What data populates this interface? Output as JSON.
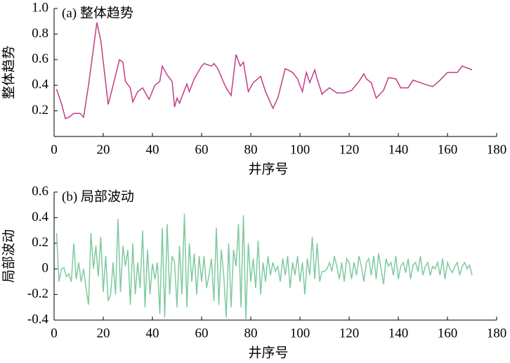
{
  "chart_data": [
    {
      "type": "line",
      "title": "(a) 整体趋势",
      "xlabel": "井序号",
      "ylabel": "整体趋势",
      "color": "#c43c86",
      "x": [
        1,
        3.1,
        4.6,
        6,
        8,
        10.6,
        12,
        14,
        17.4,
        19,
        22,
        24,
        26.6,
        28,
        29,
        31,
        32,
        34,
        36,
        38.6,
        41,
        43,
        44,
        46,
        48,
        49,
        50,
        51,
        54,
        55,
        57,
        60,
        61,
        64,
        65,
        66.6,
        69,
        70,
        72,
        74,
        75.7,
        77,
        79,
        81,
        84,
        86,
        89,
        91,
        94,
        97,
        99,
        101,
        102.6,
        104,
        106,
        107,
        109,
        110,
        112,
        115,
        118,
        121,
        124,
        126,
        127,
        129,
        131,
        134,
        136,
        139,
        141,
        144,
        146,
        149,
        152,
        154,
        157,
        160,
        164,
        166,
        170
      ],
      "values": [
        0.37,
        0.25,
        0.14,
        0.15,
        0.18,
        0.18,
        0.15,
        0.4,
        0.89,
        0.75,
        0.25,
        0.4,
        0.6,
        0.58,
        0.43,
        0.38,
        0.27,
        0.35,
        0.38,
        0.29,
        0.4,
        0.43,
        0.55,
        0.48,
        0.43,
        0.23,
        0.3,
        0.26,
        0.41,
        0.35,
        0.45,
        0.55,
        0.57,
        0.55,
        0.57,
        0.53,
        0.42,
        0.38,
        0.32,
        0.64,
        0.55,
        0.58,
        0.35,
        0.42,
        0.47,
        0.35,
        0.22,
        0.3,
        0.53,
        0.5,
        0.45,
        0.35,
        0.5,
        0.42,
        0.52,
        0.45,
        0.33,
        0.35,
        0.38,
        0.34,
        0.34,
        0.36,
        0.43,
        0.49,
        0.45,
        0.42,
        0.3,
        0.36,
        0.46,
        0.45,
        0.38,
        0.38,
        0.44,
        0.42,
        0.4,
        0.39,
        0.44,
        0.5,
        0.5,
        0.55,
        0.52
      ],
      "xlim": [
        0,
        180
      ],
      "xticks": [
        0,
        20,
        40,
        60,
        80,
        100,
        120,
        140,
        160,
        180
      ],
      "ylim": [
        0,
        1
      ],
      "yticks": [
        0.2,
        0.4,
        0.6,
        0.8,
        {
          "value": 1,
          "label": "1.0"
        }
      ]
    },
    {
      "type": "line",
      "title": "(b) 局部波动",
      "xlabel": "井序号",
      "ylabel": "局部波动",
      "color": "#7fcaa0",
      "x": [
        1,
        2,
        3,
        4,
        5,
        6,
        7,
        8,
        9,
        10,
        11,
        12,
        13,
        14,
        15,
        16,
        17,
        18,
        19,
        20,
        21,
        22,
        23,
        24,
        25,
        26,
        27,
        28,
        29,
        30,
        31,
        32,
        33,
        34,
        35,
        36,
        37,
        38,
        39,
        40,
        41,
        42,
        43,
        44,
        45,
        46,
        47,
        48,
        49,
        50,
        51,
        52,
        53,
        54,
        55,
        56,
        57,
        58,
        59,
        60,
        61,
        62,
        63,
        64,
        65,
        66,
        67,
        68,
        69,
        70,
        71,
        72,
        73,
        74,
        75,
        76,
        77,
        78,
        79,
        80,
        81,
        82,
        83,
        84,
        85,
        86,
        87,
        88,
        89,
        90,
        91,
        92,
        93,
        94,
        95,
        96,
        97,
        98,
        99,
        100,
        101,
        102,
        103,
        104,
        105,
        106,
        107,
        108,
        109,
        110,
        111,
        112,
        113,
        114,
        115,
        116,
        117,
        118,
        119,
        120,
        121,
        122,
        123,
        124,
        125,
        126,
        127,
        128,
        129,
        130,
        131,
        132,
        133,
        134,
        135,
        136,
        137,
        138,
        139,
        140,
        141,
        142,
        143,
        144,
        145,
        146,
        147,
        148,
        149,
        150,
        151,
        152,
        153,
        154,
        155,
        156,
        157,
        158,
        159,
        160,
        161,
        162,
        163,
        164,
        165,
        166,
        167,
        168,
        169,
        170
      ],
      "values": [
        0.28,
        -0.1,
        0,
        0.01,
        -0.06,
        -0.04,
        -0.1,
        0.2,
        -0.08,
        0.05,
        -0.1,
        0,
        -0.15,
        -0.28,
        0.28,
        0,
        0.18,
        -0.06,
        0.25,
        -0.18,
        0.1,
        -0.25,
        -0.2,
        0.05,
        -0.2,
        0.39,
        -0.18,
        0.18,
        0.02,
        0.15,
        -0.28,
        0.2,
        -0.2,
        0.05,
        -0.15,
        0.3,
        -0.3,
        0.15,
        -0.2,
        0.04,
        -0.08,
        0.05,
        -0.35,
        0.32,
        -0.38,
        0.35,
        -0.2,
        0.1,
        0.05,
        -0.3,
        0.18,
        -0.2,
        0.43,
        -0.3,
        0.2,
        -0.1,
        0.12,
        -0.2,
        0.1,
        -0.1,
        0.1,
        -0.15,
        -0.05,
        0.08,
        -0.25,
        0.32,
        -0.28,
        0.15,
        -0.05,
        -0.38,
        0.2,
        -0.3,
        0.15,
        0.02,
        0.35,
        -0.3,
        0.42,
        -0.4,
        0.2,
        -0.1,
        0.08,
        -0.15,
        0.22,
        -0.2,
        0.05,
        -0.1,
        0.1,
        -0.05,
        0.05,
        -0.02,
        0.02,
        -0.1,
        0.08,
        -0.05,
        0.1,
        -0.15,
        0.05,
        -0.05,
        0.1,
        -0.1,
        0.05,
        -0.2,
        0.08,
        -0.05,
        0.25,
        -0.08,
        0.2,
        -0.1,
        -0.02,
        -0.02,
        0,
        0.05,
        -0.02,
        0.1,
        0.02,
        -0.08,
        0.05,
        -0.1,
        0.08,
        0.05,
        -0.08,
        0.05,
        -0.05,
        0.1,
        0.02,
        -0.1,
        0.05,
        0.08,
        -0.05,
        0.1,
        -0.08,
        0.12,
        0,
        -0.12,
        0.08,
        0.02,
        0.05,
        -0.05,
        0.1,
        -0.08,
        0.02,
        0.05,
        -0.03,
        0.08,
        -0.08,
        0.03,
        0.05,
        -0.02,
        0.1,
        -0.05,
        0.02,
        0.05,
        -0.05,
        0.02,
        0,
        0.05,
        -0.05,
        0.08,
        -0.08,
        0.05,
        0,
        -0.03,
        0.02,
        0.05,
        -0.05,
        0.02,
        0.05,
        0,
        0.03,
        -0.05
      ],
      "xlim": [
        0,
        180
      ],
      "xticks": [
        0,
        20,
        40,
        60,
        80,
        100,
        120,
        140,
        160,
        180
      ],
      "ylim": [
        -0.4,
        0.6
      ],
      "yticks": [
        -0.4,
        -0.2,
        0,
        0.2,
        0.4,
        0.6
      ]
    }
  ]
}
